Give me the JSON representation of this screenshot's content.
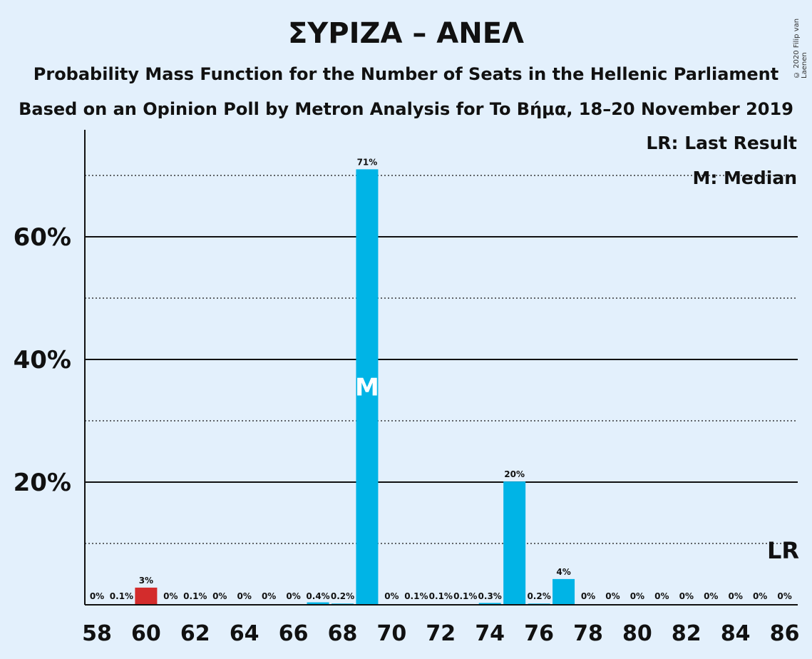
{
  "title": "ΣΥΡΙΖΑ – ΑΝΕΛ",
  "subtitle1": "Probability Mass Function for the Number of Seats in the Hellenic Parliament",
  "subtitle2": "Based on an Opinion Poll by Metron Analysis for To Βήμα, 18–20 November 2019",
  "copyright": "© 2020 Filip van Laenen",
  "legend": {
    "last_result": "LR: Last Result",
    "median": "M: Median"
  },
  "colors": {
    "bar": "#00b4e6",
    "last_result_bar": "#d32c2c",
    "background": "#e3f0fc"
  },
  "chart_data": {
    "type": "bar",
    "x": [
      58,
      59,
      60,
      61,
      62,
      63,
      64,
      65,
      66,
      67,
      68,
      69,
      70,
      71,
      72,
      73,
      74,
      75,
      76,
      77,
      78,
      79,
      80,
      81,
      82,
      83,
      84,
      85,
      86
    ],
    "values": [
      0,
      0.1,
      2.8,
      0,
      0.1,
      0,
      0,
      0,
      0,
      0.4,
      0.2,
      71,
      0,
      0.1,
      0.1,
      0.1,
      0.3,
      20.1,
      0.2,
      4.2,
      0,
      0,
      0,
      0,
      0,
      0,
      0,
      0,
      0
    ],
    "labels": [
      "0%",
      "0.1%",
      "3%",
      "0%",
      "0.1%",
      "0%",
      "0%",
      "0%",
      "0%",
      "0.4%",
      "0.2%",
      "71%",
      "0%",
      "0.1%",
      "0.1%",
      "0.1%",
      "0.3%",
      "20%",
      "0.2%",
      "4%",
      "0%",
      "0%",
      "0%",
      "0%",
      "0%",
      "0%",
      "0%",
      "0%",
      "0%"
    ],
    "x_tick_labels": [
      "58",
      "60",
      "62",
      "64",
      "66",
      "68",
      "70",
      "72",
      "74",
      "76",
      "78",
      "80",
      "82",
      "84",
      "86"
    ],
    "y_tick_labels": [
      "20%",
      "40%",
      "60%"
    ],
    "y_ticks": [
      20,
      40,
      60
    ],
    "ylim": [
      0,
      77.5
    ],
    "solid_grid": [
      20,
      40,
      60
    ],
    "dotted_grid": [
      10,
      30,
      50,
      70
    ],
    "last_result_seat": 60,
    "last_result_marker": "LR",
    "last_result_marker_seat": 86,
    "median_seat": 69,
    "median_marker": "M"
  }
}
